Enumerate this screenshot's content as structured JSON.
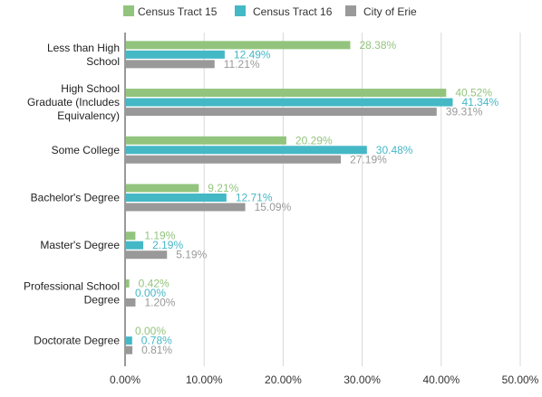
{
  "chart_data": {
    "type": "bar",
    "orientation": "horizontal",
    "categories": [
      [
        "Less than High",
        "School"
      ],
      [
        "High School",
        "Graduate (Includes",
        "Equivalency)"
      ],
      [
        "Some College"
      ],
      [
        "Bachelor's Degree"
      ],
      [
        "Master's Degree"
      ],
      [
        "Professional School",
        "Degree"
      ],
      [
        "Doctorate Degree"
      ]
    ],
    "series": [
      {
        "name": "Census Tract 15",
        "color": "#93c47d",
        "values": [
          28.38,
          40.52,
          20.29,
          9.21,
          1.19,
          0.42,
          0.0
        ]
      },
      {
        "name": "Census Tract 16",
        "color": "#45b8c6",
        "values": [
          12.49,
          41.34,
          30.48,
          12.71,
          2.19,
          0.0,
          0.78
        ]
      },
      {
        "name": "City of Erie",
        "color": "#999999",
        "values": [
          11.21,
          39.31,
          27.19,
          15.09,
          5.19,
          1.2,
          0.81
        ]
      }
    ],
    "xlim": [
      0,
      50
    ],
    "xticks": [
      "0.00%",
      "10.00%",
      "20.00%",
      "30.00%",
      "40.00%",
      "50.00%"
    ],
    "value_suffix": "%",
    "legend_position": "top",
    "grid": true
  }
}
